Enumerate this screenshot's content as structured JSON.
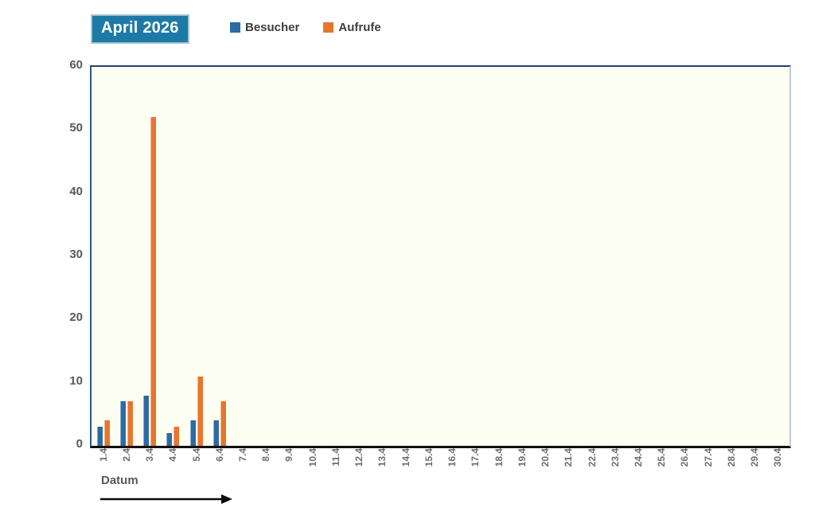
{
  "title_badge": {
    "label": "April 2026"
  },
  "theme": {
    "badge_bg": "#1d7aa6",
    "badge_text": "#ffffff",
    "plot_bg": "#fdfef2",
    "besucher_blue": "#2c6ba3",
    "aufrufe_orange": "#e8752c",
    "axis_label_gray": "#595959"
  },
  "x_axis": {
    "label": "Datum"
  },
  "chart_data": {
    "type": "bar",
    "title": "April 2026",
    "xlabel": "Datum",
    "ylabel": "",
    "ylim": [
      0,
      60
    ],
    "yticks": [
      0,
      10,
      20,
      30,
      40,
      50,
      60
    ],
    "grid": false,
    "legend_position": "top",
    "categories": [
      "1.4",
      "2.4",
      "3.4",
      "4.4",
      "5.4",
      "6.4",
      "7.4",
      "8.4",
      "9.4",
      "10.4",
      "11.4",
      "12.4",
      "13.4",
      "14.4",
      "15.4",
      "16.4",
      "17.4",
      "18.4",
      "19.4",
      "20.4",
      "21.4",
      "22.4",
      "23.4",
      "24.4",
      "25.4",
      "26.4",
      "27.4",
      "28.4",
      "29.4",
      "30.4"
    ],
    "series": [
      {
        "name": "Besucher",
        "color": "#2c6ba3",
        "values": [
          3,
          7,
          8,
          2,
          4,
          4,
          0,
          0,
          0,
          0,
          0,
          0,
          0,
          0,
          0,
          0,
          0,
          0,
          0,
          0,
          0,
          0,
          0,
          0,
          0,
          0,
          0,
          0,
          0,
          0
        ]
      },
      {
        "name": "Aufrufe",
        "color": "#e8752c",
        "values": [
          4,
          7,
          52,
          3,
          11,
          7,
          0,
          0,
          0,
          0,
          0,
          0,
          0,
          0,
          0,
          0,
          0,
          0,
          0,
          0,
          0,
          0,
          0,
          0,
          0,
          0,
          0,
          0,
          0,
          0
        ]
      }
    ]
  }
}
